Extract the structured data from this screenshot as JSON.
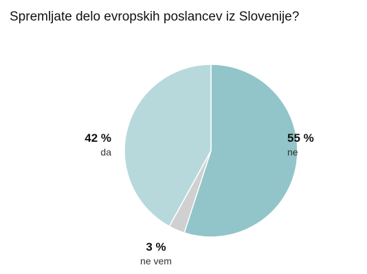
{
  "chart_data": {
    "type": "pie",
    "title": "Spremljate delo evropskih poslancev iz Slovenije?",
    "slices": [
      {
        "label": "ne",
        "value": 55,
        "value_label": "55 %",
        "color": "#91c5c9"
      },
      {
        "label": "ne vem",
        "value": 3,
        "value_label": "3 %",
        "color": "#d0d0d0"
      },
      {
        "label": "da",
        "value": 42,
        "value_label": "42 %",
        "color": "#b7d9dc"
      }
    ],
    "start": "12 o'clock",
    "direction": "clockwise",
    "slice_border_color": "#ffffff"
  }
}
